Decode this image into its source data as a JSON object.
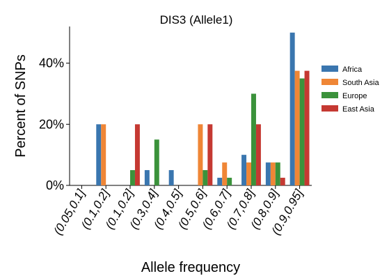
{
  "chart_data": {
    "type": "bar",
    "title": "DIS3 (Allele1)",
    "xlabel": "Allele frequency",
    "ylabel": "Percent of SNPs",
    "ylim": [
      0,
      52
    ],
    "yticks": [
      0,
      20,
      40
    ],
    "ytick_labels": [
      "0%",
      "20%",
      "40%"
    ],
    "grid": false,
    "legend_position": "right",
    "categories": [
      "(0.05,0.1]",
      "(0.1,0.2]",
      "(0.1,0.2]",
      "(0.3,0.4]",
      "(0.4,0.5]",
      "(0.5,0.6]",
      "(0.6,0.7]",
      "(0.7,0.8]",
      "(0.8,0.9]",
      "(0.9,0.95]"
    ],
    "series": [
      {
        "name": "Africa",
        "color": "#3a76af",
        "values": [
          0,
          20,
          0,
          5,
          5,
          0,
          2.5,
          10,
          7.5,
          50
        ]
      },
      {
        "name": "South Asia",
        "color": "#ef8636",
        "values": [
          0,
          20,
          0,
          0,
          0,
          20,
          7.5,
          7.5,
          7.5,
          37.5
        ]
      },
      {
        "name": "Europe",
        "color": "#3b923b",
        "values": [
          0,
          0,
          5,
          15,
          0,
          5,
          2.5,
          30,
          7.5,
          35
        ]
      },
      {
        "name": "East Asia",
        "color": "#c53932",
        "values": [
          0,
          0,
          20,
          0,
          0,
          20,
          0,
          20,
          2.5,
          37.5
        ]
      }
    ]
  }
}
